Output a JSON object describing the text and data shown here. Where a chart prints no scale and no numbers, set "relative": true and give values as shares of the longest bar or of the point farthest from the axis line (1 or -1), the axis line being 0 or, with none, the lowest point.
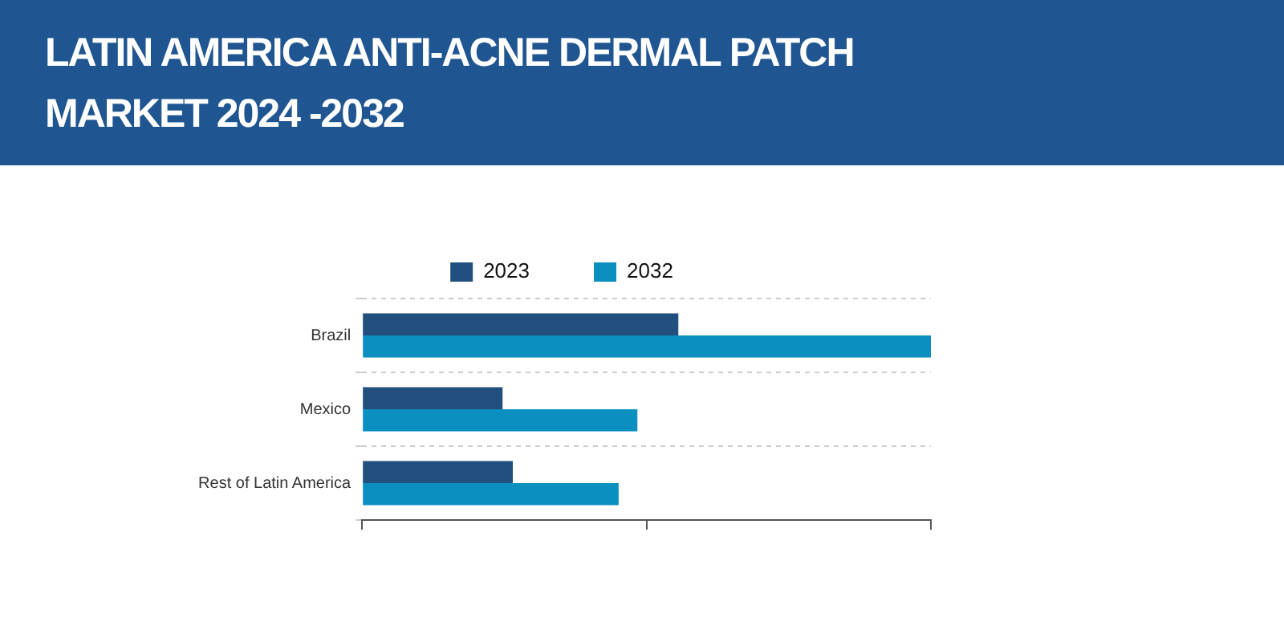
{
  "chart_data": {
    "type": "bar",
    "title": "LATIN AMERICA ANTI-ACNE DERMAL PATCH MARKET 2024 -2032",
    "orientation": "horizontal",
    "relative": true,
    "categories": [
      "Brazil",
      "Mexico",
      "Rest of Latin America"
    ],
    "series": [
      {
        "name": "2023",
        "color": "#234f7e",
        "values": [
          0.556,
          0.247,
          0.265
        ]
      },
      {
        "name": "2032",
        "color": "#0a8fc0",
        "values": [
          1,
          0.484,
          0.451
        ]
      }
    ],
    "grid": "y",
    "legend": "top"
  }
}
